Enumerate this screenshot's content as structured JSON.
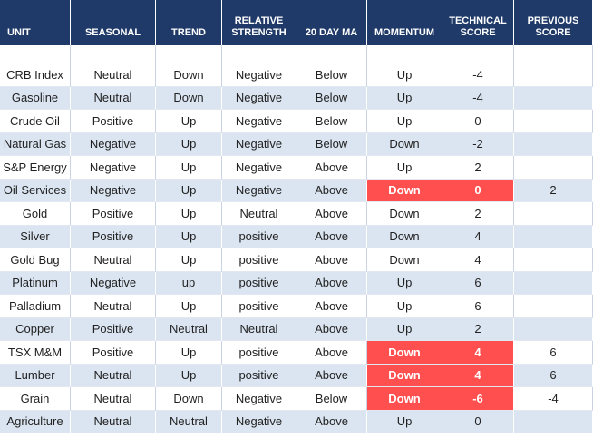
{
  "table": {
    "columns": [
      "UNIT",
      "SEASONAL",
      "TREND",
      "RELATIVE STRENGTH",
      "20 DAY MA",
      "MOMENTUM",
      "TECHNICAL SCORE",
      "PREVIOUS SCORE"
    ],
    "rows": [
      {
        "unit": "CRB Index",
        "seasonal": "Neutral",
        "trend": "Down",
        "relative_strength": "Negative",
        "ma20": "Below",
        "momentum": "Up",
        "technical_score": -4
      },
      {
        "unit": "Gasoline",
        "seasonal": "Neutral",
        "trend": "Down",
        "relative_strength": "Negative",
        "ma20": "Below",
        "momentum": "Up",
        "technical_score": -4
      },
      {
        "unit": "Crude Oil",
        "seasonal": "Positive",
        "trend": "Up",
        "relative_strength": "Negative",
        "ma20": "Below",
        "momentum": "Up",
        "technical_score": 0
      },
      {
        "unit": "Natural Gas",
        "seasonal": "Negative",
        "trend": "Up",
        "relative_strength": "Negative",
        "ma20": "Below",
        "momentum": "Down",
        "technical_score": -2
      },
      {
        "unit": "S&P Energy",
        "seasonal": "Negative",
        "trend": "Up",
        "relative_strength": "Negative",
        "ma20": "Above",
        "momentum": "Up",
        "technical_score": 2
      },
      {
        "unit": "Oil Services",
        "seasonal": "Negative",
        "trend": "Up",
        "relative_strength": "Negative",
        "ma20": "Above",
        "momentum": "Down",
        "technical_score": 0,
        "previous_score": 2,
        "flagged": true
      },
      {
        "unit": "Gold",
        "seasonal": "Positive",
        "trend": "Up",
        "relative_strength": "Neutral",
        "ma20": "Above",
        "momentum": "Down",
        "technical_score": 2
      },
      {
        "unit": "Silver",
        "seasonal": "Positive",
        "trend": "Up",
        "relative_strength": "positive",
        "ma20": "Above",
        "momentum": "Down",
        "technical_score": 4
      },
      {
        "unit": "Gold Bug",
        "seasonal": "Neutral",
        "trend": "Up",
        "relative_strength": "positive",
        "ma20": "Above",
        "momentum": "Down",
        "technical_score": 4
      },
      {
        "unit": "Platinum",
        "seasonal": "Negative",
        "trend": "up",
        "relative_strength": "positive",
        "ma20": "Above",
        "momentum": "Up",
        "technical_score": 6
      },
      {
        "unit": "Palladium",
        "seasonal": "Neutral",
        "trend": "Up",
        "relative_strength": "positive",
        "ma20": "Above",
        "momentum": "Up",
        "technical_score": 6
      },
      {
        "unit": "Copper",
        "seasonal": "Positive",
        "trend": "Neutral",
        "relative_strength": "Neutral",
        "ma20": "Above",
        "momentum": "Up",
        "technical_score": 2
      },
      {
        "unit": "TSX M&M",
        "seasonal": "Positive",
        "trend": "Up",
        "relative_strength": "positive",
        "ma20": "Above",
        "momentum": "Down",
        "technical_score": 4,
        "previous_score": 6,
        "flagged": true
      },
      {
        "unit": "Lumber",
        "seasonal": "Neutral",
        "trend": "Up",
        "relative_strength": "positive",
        "ma20": "Above",
        "momentum": "Down",
        "technical_score": 4,
        "previous_score": 6,
        "flagged": true
      },
      {
        "unit": "Grain",
        "seasonal": "Neutral",
        "trend": "Down",
        "relative_strength": "Negative",
        "ma20": "Below",
        "momentum": "Down",
        "technical_score": -6,
        "previous_score": -4,
        "flagged": true
      },
      {
        "unit": "Agriculture",
        "seasonal": "Neutral",
        "trend": "Neutral",
        "relative_strength": "Negative",
        "ma20": "Above",
        "momentum": "Up",
        "technical_score": 0
      }
    ]
  }
}
